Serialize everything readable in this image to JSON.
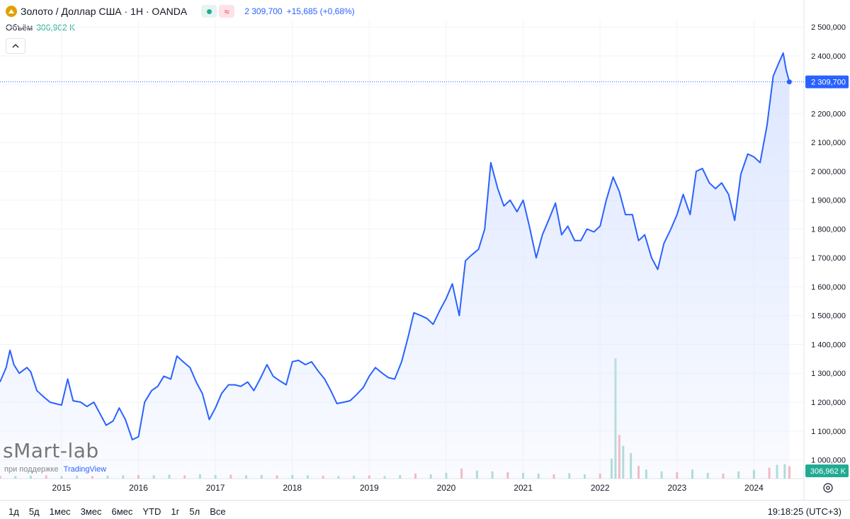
{
  "header": {
    "symbol_icon": "gold-coin-icon",
    "title": "Золото / Доллар США · 1H · OANDA",
    "last_price": "2 309,700",
    "change": "+15,685 (+0,68%)",
    "volume_label": "Объём",
    "volume_value": "306,962 K"
  },
  "watermark": {
    "brand": "sMart-lab",
    "support_text": "при поддержке",
    "support_link": "TradingView"
  },
  "price_tag": "2 309,700",
  "volume_tag": "306,962 K",
  "footer": {
    "ranges": [
      "1д",
      "5д",
      "1мес",
      "3мес",
      "6мес",
      "YTD",
      "1г",
      "5л",
      "Все"
    ],
    "clock": "19:18:25 (UTC+3)"
  },
  "colors": {
    "line": "#2962ff",
    "area": "#dbe5ff",
    "volume_up": "#9fd6cc",
    "volume_down": "#f6a9b1",
    "price_tag_bg": "#2962ff",
    "volume_tag_bg": "#22ab94"
  },
  "chart_data": {
    "type": "area",
    "title": "Золото / Доллар США · 1H · OANDA",
    "x_ticks": [
      "2015",
      "2016",
      "2017",
      "2018",
      "2019",
      "2020",
      "2021",
      "2022",
      "2023",
      "2024"
    ],
    "y_ticks": [
      "1 000,000",
      "1 100,000",
      "1 200,000",
      "1 300,000",
      "1 400,000",
      "1 500,000",
      "1 600,000",
      "1 700,000",
      "1 800,000",
      "1 900,000",
      "2 000,000",
      "2 100,000",
      "2 200,000",
      "2 300,000",
      "2 400,000",
      "2 500,000"
    ],
    "ylim": [
      935,
      2525
    ],
    "xlim": [
      2014.2,
      2024.65
    ],
    "grid": true,
    "series": [
      {
        "values": [
          [
            2014.2,
            1270
          ],
          [
            2014.28,
            1320
          ],
          [
            2014.33,
            1380
          ],
          [
            2014.38,
            1330
          ],
          [
            2014.45,
            1300
          ],
          [
            2014.55,
            1320
          ],
          [
            2014.6,
            1305
          ],
          [
            2014.68,
            1240
          ],
          [
            2014.76,
            1220
          ],
          [
            2014.85,
            1200
          ],
          [
            2014.92,
            1195
          ],
          [
            2015.0,
            1190
          ],
          [
            2015.08,
            1280
          ],
          [
            2015.15,
            1205
          ],
          [
            2015.25,
            1200
          ],
          [
            2015.33,
            1185
          ],
          [
            2015.42,
            1200
          ],
          [
            2015.5,
            1160
          ],
          [
            2015.58,
            1120
          ],
          [
            2015.67,
            1135
          ],
          [
            2015.75,
            1180
          ],
          [
            2015.83,
            1140
          ],
          [
            2015.92,
            1070
          ],
          [
            2016.0,
            1080
          ],
          [
            2016.08,
            1200
          ],
          [
            2016.17,
            1240
          ],
          [
            2016.25,
            1255
          ],
          [
            2016.33,
            1290
          ],
          [
            2016.42,
            1280
          ],
          [
            2016.5,
            1360
          ],
          [
            2016.58,
            1340
          ],
          [
            2016.67,
            1320
          ],
          [
            2016.75,
            1270
          ],
          [
            2016.83,
            1230
          ],
          [
            2016.92,
            1140
          ],
          [
            2017.0,
            1180
          ],
          [
            2017.08,
            1230
          ],
          [
            2017.17,
            1260
          ],
          [
            2017.25,
            1260
          ],
          [
            2017.33,
            1255
          ],
          [
            2017.42,
            1270
          ],
          [
            2017.5,
            1240
          ],
          [
            2017.58,
            1280
          ],
          [
            2017.67,
            1330
          ],
          [
            2017.75,
            1290
          ],
          [
            2017.83,
            1275
          ],
          [
            2017.92,
            1260
          ],
          [
            2018.0,
            1340
          ],
          [
            2018.08,
            1345
          ],
          [
            2018.17,
            1330
          ],
          [
            2018.25,
            1340
          ],
          [
            2018.33,
            1310
          ],
          [
            2018.42,
            1280
          ],
          [
            2018.5,
            1240
          ],
          [
            2018.58,
            1195
          ],
          [
            2018.67,
            1200
          ],
          [
            2018.75,
            1205
          ],
          [
            2018.83,
            1225
          ],
          [
            2018.92,
            1250
          ],
          [
            2019.0,
            1290
          ],
          [
            2019.08,
            1320
          ],
          [
            2019.17,
            1300
          ],
          [
            2019.25,
            1285
          ],
          [
            2019.33,
            1280
          ],
          [
            2019.42,
            1340
          ],
          [
            2019.5,
            1420
          ],
          [
            2019.58,
            1510
          ],
          [
            2019.67,
            1500
          ],
          [
            2019.75,
            1490
          ],
          [
            2019.83,
            1470
          ],
          [
            2019.92,
            1520
          ],
          [
            2020.0,
            1560
          ],
          [
            2020.08,
            1610
          ],
          [
            2020.17,
            1500
          ],
          [
            2020.25,
            1690
          ],
          [
            2020.33,
            1710
          ],
          [
            2020.42,
            1730
          ],
          [
            2020.5,
            1800
          ],
          [
            2020.58,
            2030
          ],
          [
            2020.67,
            1940
          ],
          [
            2020.75,
            1880
          ],
          [
            2020.83,
            1900
          ],
          [
            2020.92,
            1860
          ],
          [
            2021.0,
            1900
          ],
          [
            2021.08,
            1810
          ],
          [
            2021.17,
            1700
          ],
          [
            2021.25,
            1780
          ],
          [
            2021.33,
            1830
          ],
          [
            2021.42,
            1890
          ],
          [
            2021.5,
            1780
          ],
          [
            2021.58,
            1810
          ],
          [
            2021.67,
            1760
          ],
          [
            2021.75,
            1760
          ],
          [
            2021.83,
            1800
          ],
          [
            2021.92,
            1790
          ],
          [
            2022.0,
            1810
          ],
          [
            2022.08,
            1900
          ],
          [
            2022.17,
            1980
          ],
          [
            2022.25,
            1930
          ],
          [
            2022.33,
            1850
          ],
          [
            2022.42,
            1850
          ],
          [
            2022.5,
            1760
          ],
          [
            2022.58,
            1780
          ],
          [
            2022.67,
            1700
          ],
          [
            2022.75,
            1660
          ],
          [
            2022.83,
            1750
          ],
          [
            2022.92,
            1800
          ],
          [
            2023.0,
            1850
          ],
          [
            2023.08,
            1920
          ],
          [
            2023.17,
            1850
          ],
          [
            2023.25,
            2000
          ],
          [
            2023.33,
            2010
          ],
          [
            2023.42,
            1960
          ],
          [
            2023.5,
            1940
          ],
          [
            2023.58,
            1960
          ],
          [
            2023.67,
            1920
          ],
          [
            2023.75,
            1830
          ],
          [
            2023.83,
            1990
          ],
          [
            2023.92,
            2060
          ],
          [
            2024.0,
            2050
          ],
          [
            2024.08,
            2030
          ],
          [
            2024.17,
            2160
          ],
          [
            2024.25,
            2330
          ],
          [
            2024.33,
            2380
          ],
          [
            2024.38,
            2410
          ],
          [
            2024.42,
            2350
          ],
          [
            2024.46,
            2310
          ]
        ]
      }
    ],
    "volume": {
      "annotation": "306,962 K",
      "values": [
        [
          2014.2,
          8
        ],
        [
          2014.4,
          7
        ],
        [
          2014.6,
          8
        ],
        [
          2014.8,
          9
        ],
        [
          2015.0,
          7
        ],
        [
          2015.2,
          8
        ],
        [
          2015.4,
          7
        ],
        [
          2015.6,
          8
        ],
        [
          2015.8,
          9
        ],
        [
          2016.0,
          10
        ],
        [
          2016.2,
          9
        ],
        [
          2016.4,
          11
        ],
        [
          2016.6,
          9
        ],
        [
          2016.8,
          12
        ],
        [
          2017.0,
          10
        ],
        [
          2017.2,
          11
        ],
        [
          2017.4,
          9
        ],
        [
          2017.6,
          10
        ],
        [
          2017.8,
          9
        ],
        [
          2018.0,
          10
        ],
        [
          2018.2,
          9
        ],
        [
          2018.4,
          8
        ],
        [
          2018.6,
          7
        ],
        [
          2018.8,
          8
        ],
        [
          2019.0,
          9
        ],
        [
          2019.2,
          7
        ],
        [
          2019.4,
          10
        ],
        [
          2019.6,
          14
        ],
        [
          2019.8,
          12
        ],
        [
          2020.0,
          16
        ],
        [
          2020.2,
          28
        ],
        [
          2020.4,
          22
        ],
        [
          2020.6,
          20
        ],
        [
          2020.8,
          18
        ],
        [
          2021.0,
          16
        ],
        [
          2021.2,
          14
        ],
        [
          2021.4,
          12
        ],
        [
          2021.6,
          15
        ],
        [
          2021.8,
          12
        ],
        [
          2022.0,
          14
        ],
        [
          2022.15,
          55
        ],
        [
          2022.2,
          330
        ],
        [
          2022.25,
          120
        ],
        [
          2022.3,
          90
        ],
        [
          2022.4,
          70
        ],
        [
          2022.5,
          35
        ],
        [
          2022.6,
          25
        ],
        [
          2022.8,
          20
        ],
        [
          2023.0,
          18
        ],
        [
          2023.2,
          25
        ],
        [
          2023.4,
          16
        ],
        [
          2023.6,
          14
        ],
        [
          2023.8,
          20
        ],
        [
          2024.0,
          24
        ],
        [
          2024.2,
          30
        ],
        [
          2024.3,
          38
        ],
        [
          2024.4,
          40
        ],
        [
          2024.46,
          34
        ]
      ]
    }
  }
}
